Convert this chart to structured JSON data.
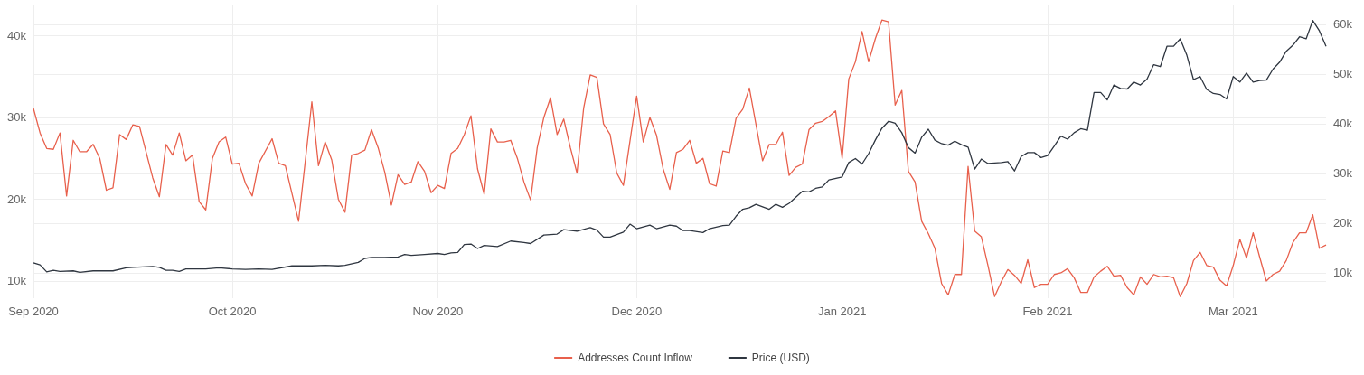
{
  "chart_data": {
    "type": "line",
    "xlim": [
      "2020-09-01",
      "2021-03-15"
    ],
    "xticks": [
      {
        "value": "2020-09-01",
        "label": "Sep 2020"
      },
      {
        "value": "2020-10-01",
        "label": "Oct 2020"
      },
      {
        "value": "2020-11-01",
        "label": "Nov 2020"
      },
      {
        "value": "2020-12-01",
        "label": "Dec 2020"
      },
      {
        "value": "2021-01-01",
        "label": "Jan 2021"
      },
      {
        "value": "2021-02-01",
        "label": "Feb 2021"
      },
      {
        "value": "2021-03-01",
        "label": "Mar 2021"
      }
    ],
    "ylim": [
      7900,
      43800
    ],
    "yticks": [
      {
        "value": 10000,
        "label": "10k"
      },
      {
        "value": 20000,
        "label": "20k"
      },
      {
        "value": 30000,
        "label": "30k"
      },
      {
        "value": 40000,
        "label": "40k"
      }
    ],
    "y2lim": [
      4900,
      64000
    ],
    "y2ticks": [
      {
        "value": 10000,
        "label": "10k"
      },
      {
        "value": 20000,
        "label": "20k"
      },
      {
        "value": 30000,
        "label": "30k"
      },
      {
        "value": 40000,
        "label": "40k"
      },
      {
        "value": 50000,
        "label": "50k"
      },
      {
        "value": 60000,
        "label": "60k"
      }
    ],
    "grid": true,
    "legend": "bottom",
    "marker": "none",
    "series": [
      {
        "name": "Addresses Count Inflow",
        "color": "#e8604c",
        "x": [
          "2020-09-01",
          "2020-09-02",
          "2020-09-03",
          "2020-09-04",
          "2020-09-05",
          "2020-09-06",
          "2020-09-07",
          "2020-09-08",
          "2020-09-09",
          "2020-09-10",
          "2020-09-11",
          "2020-09-12",
          "2020-09-13",
          "2020-09-14",
          "2020-09-15",
          "2020-09-16",
          "2020-09-17",
          "2020-09-19",
          "2020-09-20",
          "2020-09-21",
          "2020-09-22",
          "2020-09-23",
          "2020-09-24",
          "2020-09-25",
          "2020-09-26",
          "2020-09-27",
          "2020-09-28",
          "2020-09-29",
          "2020-09-30",
          "2020-10-01",
          "2020-10-02",
          "2020-10-03",
          "2020-10-04",
          "2020-10-05",
          "2020-10-07",
          "2020-10-08",
          "2020-10-09",
          "2020-10-11",
          "2020-10-13",
          "2020-10-14",
          "2020-10-15",
          "2020-10-16",
          "2020-10-17",
          "2020-10-18",
          "2020-10-19",
          "2020-10-20",
          "2020-10-21",
          "2020-10-22",
          "2020-10-23",
          "2020-10-24",
          "2020-10-25",
          "2020-10-26",
          "2020-10-27",
          "2020-10-28",
          "2020-10-29",
          "2020-10-30",
          "2020-10-31",
          "2020-11-01",
          "2020-11-02",
          "2020-11-03",
          "2020-11-04",
          "2020-11-05",
          "2020-11-06",
          "2020-11-07",
          "2020-11-08",
          "2020-11-09",
          "2020-11-10",
          "2020-11-11",
          "2020-11-12",
          "2020-11-13",
          "2020-11-14",
          "2020-11-15",
          "2020-11-16",
          "2020-11-17",
          "2020-11-18",
          "2020-11-19",
          "2020-11-20",
          "2020-11-21",
          "2020-11-22",
          "2020-11-23",
          "2020-11-24",
          "2020-11-25",
          "2020-11-26",
          "2020-11-27",
          "2020-11-28",
          "2020-11-29",
          "2020-12-01",
          "2020-12-02",
          "2020-12-03",
          "2020-12-04",
          "2020-12-05",
          "2020-12-06",
          "2020-12-07",
          "2020-12-08",
          "2020-12-09",
          "2020-12-10",
          "2020-12-11",
          "2020-12-12",
          "2020-12-13",
          "2020-12-14",
          "2020-12-15",
          "2020-12-16",
          "2020-12-17",
          "2020-12-18",
          "2020-12-20",
          "2020-12-21",
          "2020-12-22",
          "2020-12-23",
          "2020-12-24",
          "2020-12-25",
          "2020-12-26",
          "2020-12-27",
          "2020-12-28",
          "2020-12-29",
          "2020-12-30",
          "2020-12-31",
          "2021-01-01",
          "2021-01-02",
          "2021-01-03",
          "2021-01-04",
          "2021-01-05",
          "2021-01-06",
          "2021-01-07",
          "2021-01-08",
          "2021-01-09",
          "2021-01-10",
          "2021-01-11",
          "2021-01-12",
          "2021-01-13",
          "2021-01-14",
          "2021-01-15",
          "2021-01-16",
          "2021-01-17",
          "2021-01-18",
          "2021-01-19",
          "2021-01-20",
          "2021-01-21",
          "2021-01-22",
          "2021-01-23",
          "2021-01-24",
          "2021-01-25",
          "2021-01-26",
          "2021-01-27",
          "2021-01-28",
          "2021-01-29",
          "2021-01-30",
          "2021-01-31",
          "2021-02-01",
          "2021-02-02",
          "2021-02-03",
          "2021-02-04",
          "2021-02-05",
          "2021-02-06",
          "2021-02-07",
          "2021-02-08",
          "2021-02-09",
          "2021-02-10",
          "2021-02-11",
          "2021-02-12",
          "2021-02-13",
          "2021-02-14",
          "2021-02-15",
          "2021-02-16",
          "2021-02-17",
          "2021-02-18",
          "2021-02-19",
          "2021-02-20",
          "2021-02-21",
          "2021-02-22",
          "2021-02-23",
          "2021-02-24",
          "2021-02-25",
          "2021-02-26",
          "2021-02-27",
          "2021-02-28",
          "2021-03-01",
          "2021-03-02",
          "2021-03-03",
          "2021-03-04",
          "2021-03-05",
          "2021-03-06",
          "2021-03-07",
          "2021-03-08",
          "2021-03-09",
          "2021-03-10",
          "2021-03-11",
          "2021-03-12",
          "2021-03-13",
          "2021-03-14",
          "2021-03-15"
        ],
        "values": [
          31100,
          28100,
          26200,
          26100,
          28100,
          20400,
          27200,
          25800,
          25800,
          26700,
          25000,
          21100,
          21400,
          27900,
          27300,
          29100,
          28900,
          22600,
          20300,
          26700,
          25400,
          28100,
          24700,
          25400,
          19700,
          18700,
          25000,
          27000,
          27600,
          24300,
          24400,
          21900,
          20400,
          24400,
          27400,
          24400,
          24100,
          17300,
          31900,
          24100,
          27000,
          24800,
          20000,
          18400,
          25400,
          25600,
          26000,
          28500,
          26300,
          23300,
          19300,
          23000,
          21800,
          22100,
          24600,
          23400,
          20800,
          21700,
          21300,
          25600,
          26200,
          27900,
          30200,
          23700,
          20600,
          28600,
          27000,
          27000,
          27200,
          25000,
          22100,
          19900,
          26300,
          30000,
          32400,
          27900,
          29800,
          26300,
          23200,
          31100,
          35200,
          34900,
          29200,
          27900,
          23200,
          21700,
          32600,
          27000,
          30000,
          27800,
          23700,
          21200,
          25700,
          26100,
          27200,
          24400,
          25000,
          21900,
          21600,
          25900,
          25700,
          29900,
          31000,
          33600,
          24700,
          26700,
          26700,
          28200,
          22900,
          23900,
          24300,
          28500,
          29300,
          29500,
          30100,
          30800,
          25000,
          34700,
          36800,
          40500,
          36800,
          39600,
          41900,
          41700,
          31500,
          33300,
          23400,
          22100,
          17300,
          15800,
          14000,
          9700,
          8300,
          10800,
          10800,
          24000,
          16100,
          15400,
          11900,
          8100,
          9900,
          11400,
          10700,
          9700,
          12600,
          9200,
          9600,
          9600,
          10800,
          11000,
          11500,
          10400,
          8600,
          8600,
          10500,
          11200,
          11800,
          10600,
          10700,
          9200,
          8300,
          10500,
          9600,
          10800,
          10500,
          10600,
          10400,
          8100,
          9700,
          12500,
          13500,
          11900,
          11700,
          10100,
          9400,
          11900,
          15100,
          12800,
          15900,
          12900,
          10000,
          10800,
          11200,
          12500,
          14700,
          15900,
          15900,
          18100,
          14000,
          14400
        ]
      },
      {
        "name": "Price (USD)",
        "color": "#2f3640",
        "axis": "y2",
        "x": [
          "2020-09-01",
          "2020-09-02",
          "2020-09-03",
          "2020-09-04",
          "2020-09-05",
          "2020-09-07",
          "2020-09-08",
          "2020-09-10",
          "2020-09-13",
          "2020-09-15",
          "2020-09-16",
          "2020-09-19",
          "2020-09-20",
          "2020-09-21",
          "2020-09-22",
          "2020-09-23",
          "2020-09-24",
          "2020-09-27",
          "2020-09-29",
          "2020-10-01",
          "2020-10-03",
          "2020-10-05",
          "2020-10-07",
          "2020-10-10",
          "2020-10-13",
          "2020-10-15",
          "2020-10-17",
          "2020-10-18",
          "2020-10-20",
          "2020-10-21",
          "2020-10-22",
          "2020-10-24",
          "2020-10-26",
          "2020-10-27",
          "2020-10-28",
          "2020-10-30",
          "2020-11-01",
          "2020-11-02",
          "2020-11-03",
          "2020-11-04",
          "2020-11-05",
          "2020-11-06",
          "2020-11-07",
          "2020-11-08",
          "2020-11-10",
          "2020-11-12",
          "2020-11-14",
          "2020-11-15",
          "2020-11-17",
          "2020-11-19",
          "2020-11-20",
          "2020-11-22",
          "2020-11-24",
          "2020-11-25",
          "2020-11-26",
          "2020-11-27",
          "2020-11-29",
          "2020-11-30",
          "2020-12-01",
          "2020-12-03",
          "2020-12-04",
          "2020-12-06",
          "2020-12-07",
          "2020-12-08",
          "2020-12-09",
          "2020-12-11",
          "2020-12-12",
          "2020-12-14",
          "2020-12-15",
          "2020-12-16",
          "2020-12-17",
          "2020-12-18",
          "2020-12-19",
          "2020-12-21",
          "2020-12-22",
          "2020-12-23",
          "2020-12-24",
          "2020-12-26",
          "2020-12-27",
          "2020-12-28",
          "2020-12-29",
          "2020-12-30",
          "2021-01-01",
          "2021-01-02",
          "2021-01-03",
          "2021-01-04",
          "2021-01-05",
          "2021-01-06",
          "2021-01-07",
          "2021-01-08",
          "2021-01-09",
          "2021-01-10",
          "2021-01-11",
          "2021-01-12",
          "2021-01-13",
          "2021-01-14",
          "2021-01-15",
          "2021-01-16",
          "2021-01-17",
          "2021-01-18",
          "2021-01-19",
          "2021-01-20",
          "2021-01-21",
          "2021-01-22",
          "2021-01-23",
          "2021-01-25",
          "2021-01-26",
          "2021-01-27",
          "2021-01-28",
          "2021-01-29",
          "2021-01-30",
          "2021-01-31",
          "2021-02-01",
          "2021-02-02",
          "2021-02-03",
          "2021-02-04",
          "2021-02-05",
          "2021-02-06",
          "2021-02-07",
          "2021-02-08",
          "2021-02-09",
          "2021-02-10",
          "2021-02-11",
          "2021-02-12",
          "2021-02-13",
          "2021-02-14",
          "2021-02-15",
          "2021-02-16",
          "2021-02-17",
          "2021-02-18",
          "2021-02-19",
          "2021-02-20",
          "2021-02-21",
          "2021-02-22",
          "2021-02-23",
          "2021-02-24",
          "2021-02-25",
          "2021-02-26",
          "2021-02-27",
          "2021-02-28",
          "2021-03-01",
          "2021-03-02",
          "2021-03-03",
          "2021-03-04",
          "2021-03-05",
          "2021-03-06",
          "2021-03-07",
          "2021-03-08",
          "2021-03-09",
          "2021-03-10",
          "2021-03-11",
          "2021-03-12",
          "2021-03-13",
          "2021-03-14",
          "2021-03-15"
        ],
        "values": [
          12000,
          11600,
          10200,
          10500,
          10300,
          10400,
          10100,
          10400,
          10400,
          11000,
          11100,
          11300,
          11100,
          10500,
          10500,
          10300,
          10800,
          10800,
          11000,
          10800,
          10700,
          10800,
          10700,
          11400,
          11400,
          11500,
          11400,
          11500,
          12100,
          12900,
          13100,
          13100,
          13200,
          13700,
          13500,
          13700,
          13900,
          13700,
          14000,
          14100,
          15700,
          15800,
          14900,
          15500,
          15300,
          16400,
          16100,
          15900,
          17600,
          17800,
          18700,
          18400,
          19100,
          18600,
          17200,
          17200,
          18200,
          19800,
          18900,
          19600,
          18900,
          19600,
          19400,
          18500,
          18500,
          18100,
          18900,
          19500,
          19600,
          21400,
          22800,
          23100,
          23800,
          22800,
          23800,
          23200,
          24000,
          26400,
          26300,
          27000,
          27300,
          28700,
          29300,
          32200,
          33000,
          31900,
          34000,
          36700,
          39100,
          40500,
          40100,
          38200,
          35200,
          34100,
          37300,
          38900,
          36700,
          36000,
          35700,
          36500,
          35800,
          35300,
          30900,
          32900,
          32000,
          32200,
          32400,
          30500,
          33400,
          34200,
          34200,
          33200,
          33600,
          35500,
          37500,
          36900,
          38200,
          39000,
          38700,
          46300,
          46300,
          44800,
          47800,
          47100,
          47000,
          48400,
          47800,
          49000,
          51900,
          51500,
          55600,
          55600,
          57100,
          53800,
          48900,
          49500,
          46900,
          46100,
          45900,
          45000,
          49500,
          48400,
          50200,
          48400,
          48700,
          48800,
          51000,
          52400,
          54600,
          55800,
          57500,
          57100,
          60800,
          58700,
          55600
        ]
      }
    ]
  }
}
